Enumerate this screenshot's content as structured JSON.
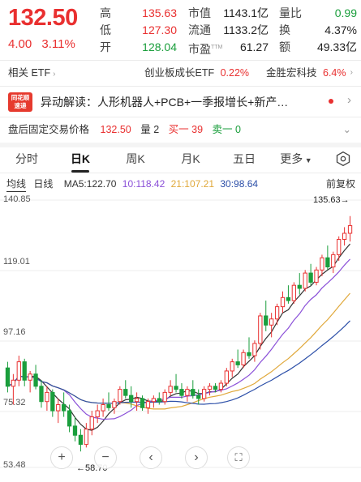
{
  "quote": {
    "price": "132.50",
    "change": "4.00",
    "change_pct": "3.11%",
    "stats": [
      {
        "label": "高",
        "value": "135.63",
        "color": "red"
      },
      {
        "label": "低",
        "value": "127.30",
        "color": "red"
      },
      {
        "label": "开",
        "value": "128.04",
        "color": "green"
      },
      {
        "label": "市值",
        "value": "1143.1亿",
        "color": "dark"
      },
      {
        "label": "流通",
        "value": "1133.2亿",
        "color": "dark"
      },
      {
        "label": "市盈",
        "value": "61.27",
        "color": "dark"
      },
      {
        "label": "量比",
        "value": "0.99",
        "color": "green"
      },
      {
        "label": "换",
        "value": "4.37%",
        "color": "dark"
      },
      {
        "label": "额",
        "value": "49.33亿",
        "color": "dark"
      }
    ],
    "pe_suffix": "TTM"
  },
  "etf": {
    "label": "相关 ETF",
    "fund_name": "创业板成长ETF",
    "fund_change": "0.22%",
    "concept": "金胜宏科技",
    "concept_change": "6.4%"
  },
  "news": {
    "logo_line1": "同花顺",
    "logo_line2": "速递",
    "text": "异动解读：人形机器人+PCB+一季报增长+新产…"
  },
  "after_hours": {
    "label": "盘后固定交易价格",
    "price": "132.50",
    "volume_label": "量 2",
    "buy": "买一 39",
    "sell": "卖一 0"
  },
  "tabs": [
    "分时",
    "日K",
    "周K",
    "月K",
    "五日",
    "更多"
  ],
  "active_tab": "日K",
  "indicators": {
    "main": "均线",
    "period": "日线",
    "ma5": "MA5:122.70",
    "ma10": "10:118.42",
    "ma21": "21:107.21",
    "ma30": "30:98.64",
    "adjust": "前复权"
  },
  "colors": {
    "up": "#e93030",
    "down": "#1a9e3c",
    "ma5": "#333333",
    "ma10": "#8a4fd8",
    "ma21": "#e0a83a",
    "ma30": "#2c4fa8"
  },
  "chart_data": {
    "type": "candlestick",
    "y_ticks": [
      "140.85",
      "119.01",
      "97.16",
      "75.32",
      "53.48"
    ],
    "ylim": [
      53.48,
      140.85
    ],
    "high_label": "135.63→",
    "low_label": "←58.70",
    "high": 135.63,
    "low": 58.7,
    "candles": [
      [
        86,
        88,
        78,
        80
      ],
      [
        80,
        84,
        74,
        82
      ],
      [
        82,
        90,
        80,
        88
      ],
      [
        88,
        89,
        80,
        82
      ],
      [
        82,
        85,
        78,
        84
      ],
      [
        84,
        87,
        79,
        80
      ],
      [
        80,
        82,
        73,
        75
      ],
      [
        75,
        80,
        72,
        78
      ],
      [
        78,
        79,
        70,
        72
      ],
      [
        72,
        76,
        68,
        74
      ],
      [
        74,
        78,
        70,
        72
      ],
      [
        72,
        74,
        65,
        67
      ],
      [
        67,
        70,
        62,
        64
      ],
      [
        64,
        66,
        58.7,
        61
      ],
      [
        61,
        68,
        60,
        66
      ],
      [
        66,
        72,
        64,
        70
      ],
      [
        70,
        74,
        68,
        72
      ],
      [
        72,
        76,
        70,
        74
      ],
      [
        74,
        78,
        72,
        73
      ],
      [
        73,
        76,
        71,
        75
      ],
      [
        75,
        80,
        74,
        79
      ],
      [
        79,
        82,
        76,
        77
      ],
      [
        77,
        80,
        73,
        75
      ],
      [
        75,
        78,
        72,
        76
      ],
      [
        76,
        77,
        72,
        73
      ],
      [
        73,
        76,
        71,
        75
      ],
      [
        75,
        77,
        73,
        76
      ],
      [
        76,
        78,
        74,
        75
      ],
      [
        75,
        79,
        74,
        78
      ],
      [
        78,
        82,
        77,
        80
      ],
      [
        80,
        84,
        78,
        79
      ],
      [
        79,
        81,
        76,
        77
      ],
      [
        77,
        80,
        75,
        79
      ],
      [
        79,
        82,
        76,
        77
      ],
      [
        77,
        79,
        74,
        76
      ],
      [
        76,
        80,
        75,
        79
      ],
      [
        79,
        81,
        77,
        80
      ],
      [
        80,
        81,
        78,
        79
      ],
      [
        79,
        82,
        78,
        81
      ],
      [
        81,
        86,
        80,
        85
      ],
      [
        85,
        89,
        83,
        88
      ],
      [
        88,
        92,
        86,
        87
      ],
      [
        87,
        92,
        86,
        91
      ],
      [
        91,
        96,
        89,
        90
      ],
      [
        90,
        95,
        88,
        94
      ],
      [
        94,
        104,
        92,
        103
      ],
      [
        103,
        108,
        98,
        100
      ],
      [
        100,
        104,
        96,
        102
      ],
      [
        102,
        107,
        100,
        106
      ],
      [
        106,
        111,
        104,
        109
      ],
      [
        109,
        113,
        107,
        108
      ],
      [
        108,
        114,
        107,
        113
      ],
      [
        113,
        117,
        110,
        112
      ],
      [
        112,
        118,
        111,
        117
      ],
      [
        117,
        120,
        113,
        114
      ],
      [
        114,
        119,
        113,
        118
      ],
      [
        118,
        123,
        116,
        122
      ],
      [
        122,
        126,
        118,
        119
      ],
      [
        119,
        124,
        117,
        123
      ],
      [
        123,
        129,
        121,
        128
      ],
      [
        128,
        132,
        126,
        130
      ],
      [
        130,
        135.63,
        127.3,
        132.5
      ]
    ]
  },
  "zoom": {
    "plus": "+",
    "minus": "−"
  }
}
